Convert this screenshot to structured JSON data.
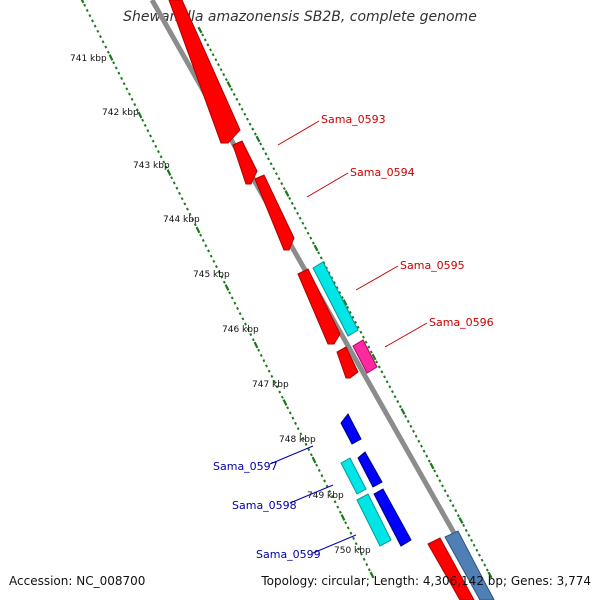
{
  "title": "Shewanella amazonensis SB2B, complete genome",
  "footer": {
    "accession": "Accession: NC_008700",
    "summary": "Topology: circular; Length: 4,306,142 bp; Genes: 3,774"
  },
  "colors": {
    "backbone": "#8c8c8c",
    "tick": "#1a7a1a",
    "red": "#ff0000",
    "cyan": "#00e5e5",
    "magenta": "#ff2aa0",
    "blue": "#0000ff",
    "steel": "#4f7fb5",
    "label_red": "#cc0000",
    "label_blue": "#0000aa"
  },
  "kbp_marks": [
    "741 kbp",
    "742 kbp",
    "743 kbp",
    "744 kbp",
    "745 kbp",
    "746 kbp",
    "747 kbp",
    "748 kbp",
    "749 kbp",
    "750 kbp"
  ],
  "gene_labels": [
    {
      "text": "Sama_0593",
      "strand": "forward"
    },
    {
      "text": "Sama_0594",
      "strand": "forward"
    },
    {
      "text": "Sama_0595",
      "strand": "forward"
    },
    {
      "text": "Sama_0596",
      "strand": "forward"
    },
    {
      "text": "Sama_0597",
      "strand": "reverse"
    },
    {
      "text": "Sama_0598",
      "strand": "reverse"
    },
    {
      "text": "Sama_0599",
      "strand": "reverse"
    }
  ]
}
